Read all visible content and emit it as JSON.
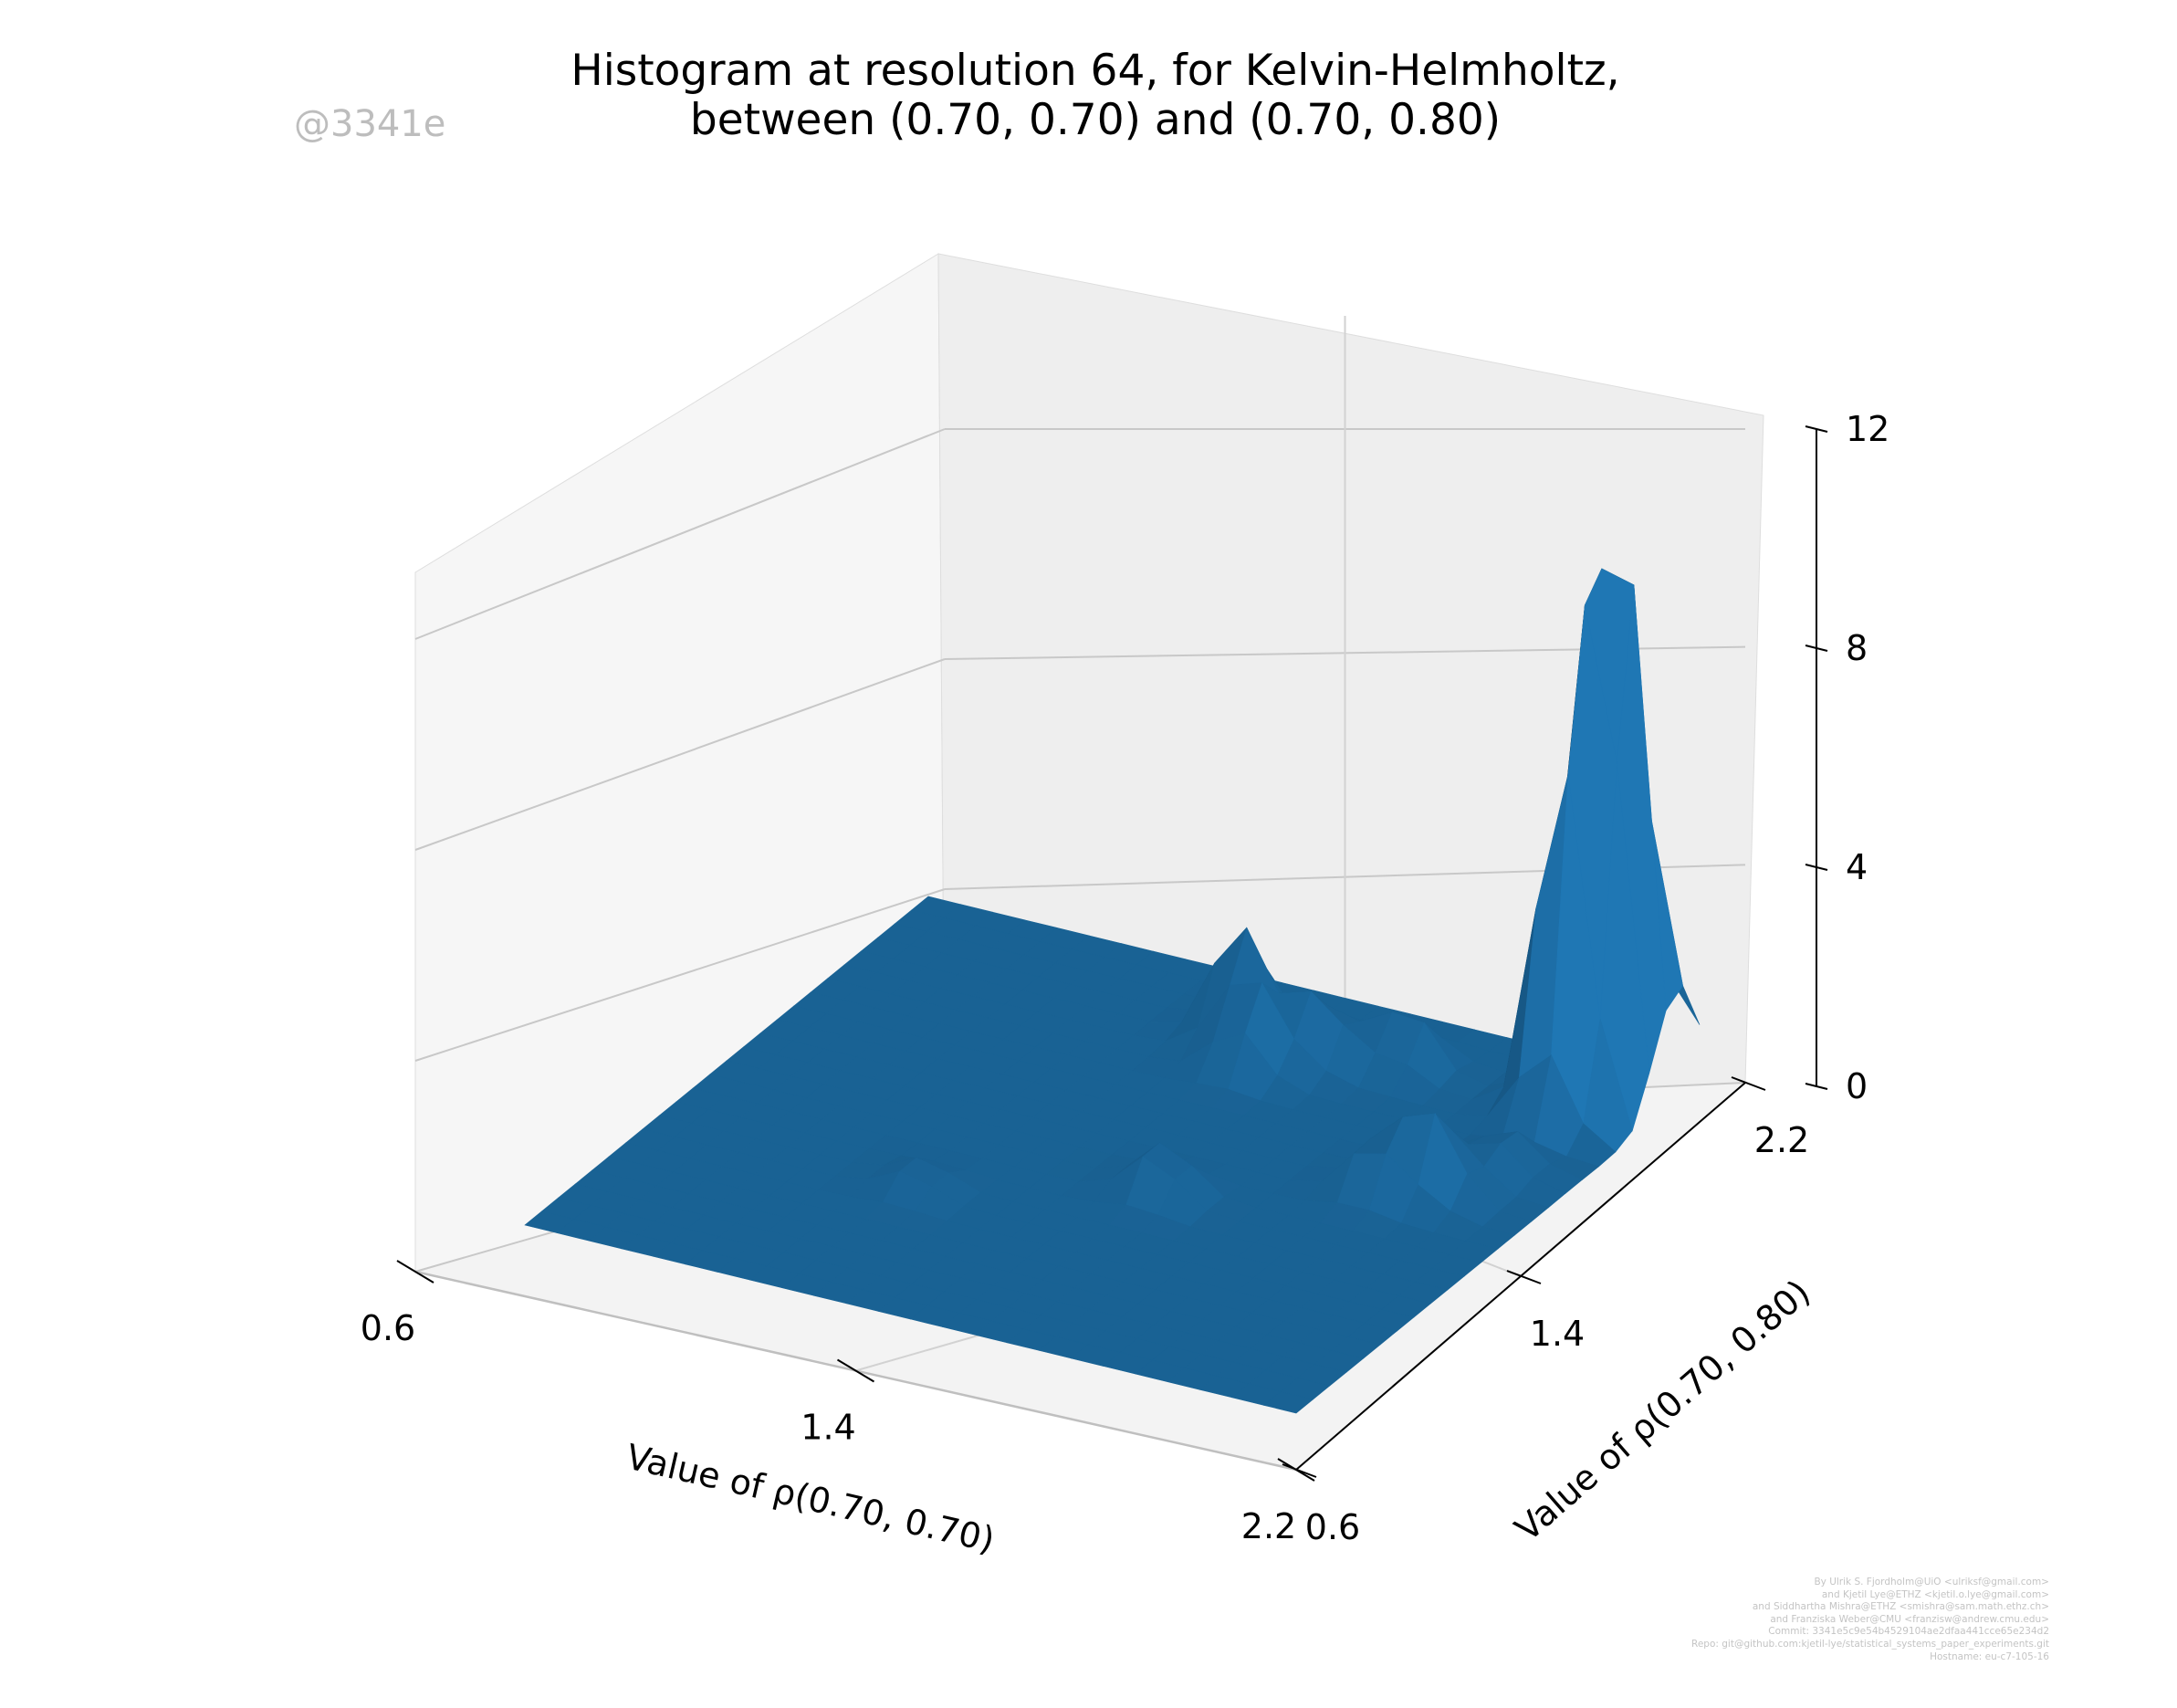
{
  "chart_data": {
    "type": "surface",
    "title_lines": [
      "Histogram at resolution 64, for Kelvin-Helmholtz,",
      "between (0.70, 0.70) and (0.70, 0.80)"
    ],
    "xlabel": "Value of ρ(0.70, 0.70)",
    "ylabel": "Value of ρ(0.70, 0.80)",
    "zlabel": "",
    "x_ticks": [
      "0.6",
      "1.4",
      "2.2"
    ],
    "y_ticks": [
      "0.6",
      "1.4",
      "2.2"
    ],
    "z_ticks": [
      "0",
      "4",
      "8",
      "12"
    ],
    "xlim": [
      0.6,
      2.2
    ],
    "ylim": [
      0.6,
      2.2
    ],
    "zlim": [
      0,
      12
    ],
    "grid": true,
    "surface_color": "#1f77b4",
    "peaks": [
      {
        "x": 1.38,
        "y": 1.95,
        "z": 2.2
      },
      {
        "x": 1.45,
        "y": 1.85,
        "z": 1.5
      },
      {
        "x": 1.55,
        "y": 1.95,
        "z": 1.3
      },
      {
        "x": 1.7,
        "y": 2.0,
        "z": 1.1
      },
      {
        "x": 1.55,
        "y": 1.3,
        "z": 1.0
      },
      {
        "x": 1.9,
        "y": 1.5,
        "z": 1.2
      },
      {
        "x": 2.0,
        "y": 1.55,
        "z": 1.5
      },
      {
        "x": 2.05,
        "y": 1.7,
        "z": 0.8
      },
      {
        "x": 2.1,
        "y": 2.05,
        "z": 11.5
      },
      {
        "x": 2.05,
        "y": 1.95,
        "z": 6.5
      },
      {
        "x": 2.1,
        "y": 2.15,
        "z": 3.0
      },
      {
        "x": 2.2,
        "y": 2.15,
        "z": 1.4
      },
      {
        "x": 1.15,
        "y": 1.1,
        "z": 0.5
      }
    ]
  },
  "watermark": "@3341e",
  "credits": [
    "By Ulrik S. Fjordholm@UiO <ulriksf@gmail.com>",
    "and Kjetil Lye@ETHZ <kjetil.o.lye@gmail.com>",
    "and Siddhartha Mishra@ETHZ <smishra@sam.math.ethz.ch>",
    "and Franziska Weber@CMU <franzisw@andrew.cmu.edu>",
    "Commit: 3341e5c9e54b4529104ae2dfaa441cce65e234d2",
    "Repo: git@github.com:kjetil-lye/statistical_systems_paper_experiments.git",
    "Hostname: eu-c7-105-16"
  ]
}
